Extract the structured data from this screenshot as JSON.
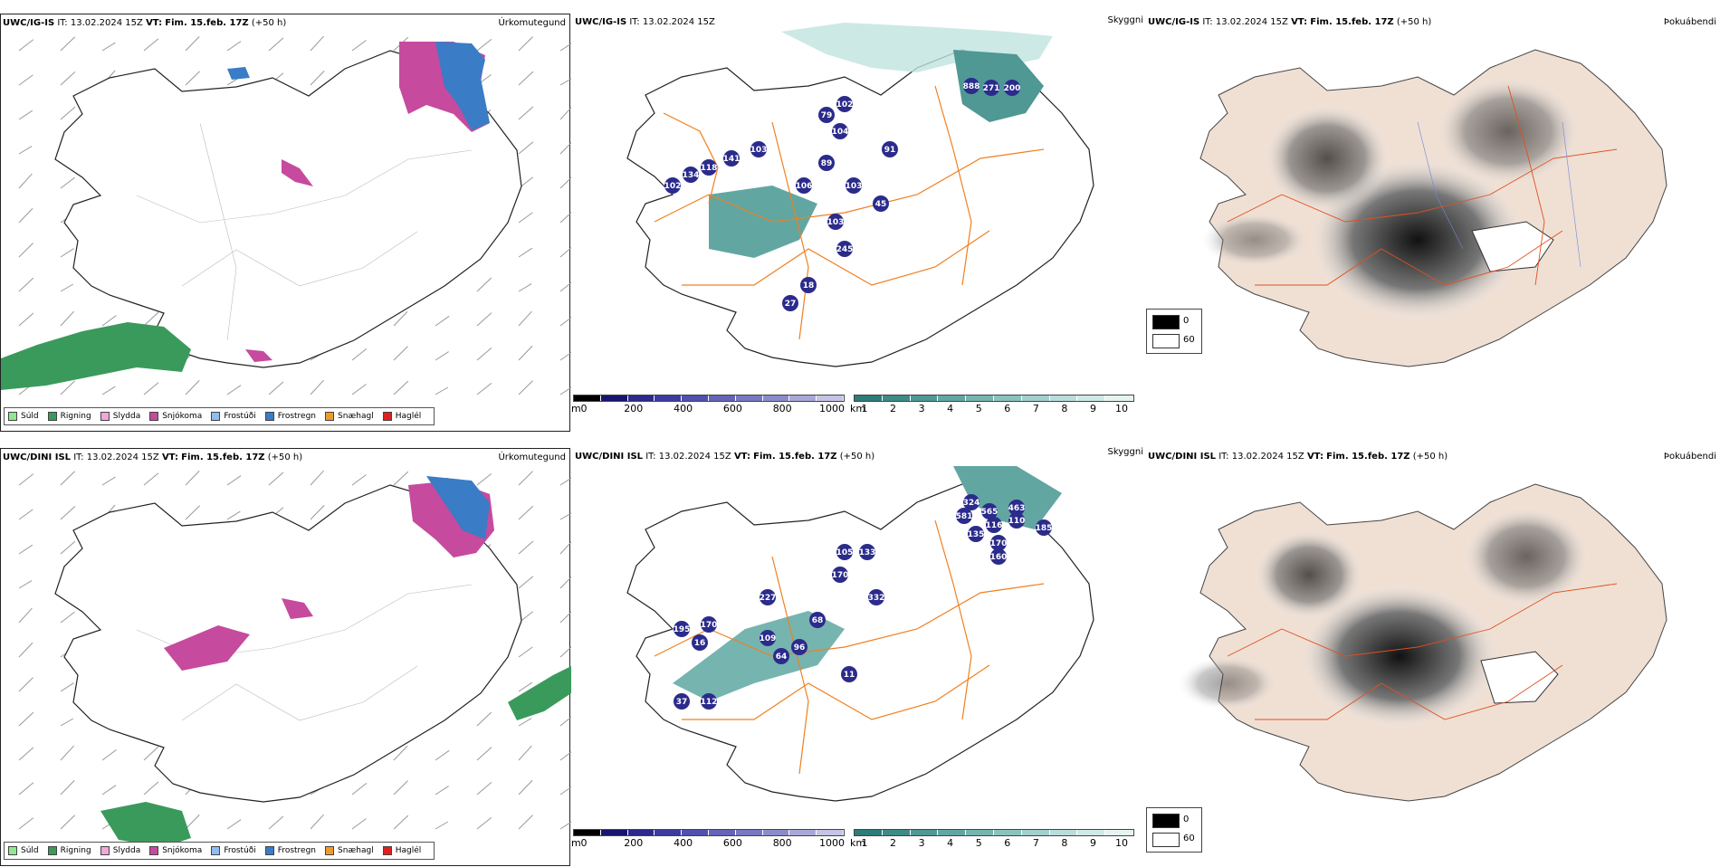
{
  "rows": [
    {
      "left": {
        "model": "UWC/IG-IS",
        "it_label": "IT:",
        "it_value": "13.02.2024 15Z",
        "vt_label": "VT:",
        "vt_value": "Fim. 15.feb. 17Z",
        "lead": "(+50 h)",
        "panel_name": "Úrkomutegund"
      },
      "middle": {
        "model": "UWC/IG-IS",
        "it_label": "IT:",
        "it_value": "13.02.2024 15Z",
        "panel_name": "Skyggni"
      },
      "right": {
        "model": "UWC/IG-IS",
        "it_label": "IT:",
        "it_value": "13.02.2024 15Z",
        "vt_label": "VT:",
        "vt_value": "Fim. 15.feb. 17Z",
        "lead": "(+50 h)",
        "panel_name": "Þokuábendi"
      }
    },
    {
      "left": {
        "model": "UWC/DINI ISL",
        "it_label": "IT:",
        "it_value": "13.02.2024 15Z",
        "vt_label": "VT:",
        "vt_value": "Fim. 15.feb. 17Z",
        "lead": "(+50 h)",
        "panel_name": "Úrkomutegund"
      },
      "middle": {
        "model": "UWC/DINI ISL",
        "it_label": "IT:",
        "it_value": "13.02.2024 15Z",
        "vt_label": "VT:",
        "vt_value": "Fim. 15.feb. 17Z",
        "lead": "(+50 h)",
        "panel_name": "Skyggni"
      },
      "right": {
        "model": "UWC/DINI ISL",
        "it_label": "IT:",
        "it_value": "13.02.2024 15Z",
        "vt_label": "VT:",
        "vt_value": "Fim. 15.feb. 17Z",
        "lead": "(+50 h)",
        "panel_name": "Þokuábendi"
      }
    }
  ],
  "precip_legend": [
    {
      "label": "Súld",
      "color": "#8fe88f"
    },
    {
      "label": "Rigning",
      "color": "#3a9a5c"
    },
    {
      "label": "Slydda",
      "color": "#f0a8d8"
    },
    {
      "label": "Snjókoma",
      "color": "#c64a9e"
    },
    {
      "label": "Frostúði",
      "color": "#8fbdf0"
    },
    {
      "label": "Frostregn",
      "color": "#3a7cc6"
    },
    {
      "label": "Snæhagl",
      "color": "#f09a2a"
    },
    {
      "label": "Haglél",
      "color": "#e02020"
    }
  ],
  "visibility_m": {
    "unit": "m",
    "ticks": [
      "0",
      "200",
      "400",
      "600",
      "800",
      "1000"
    ],
    "colors": [
      "#000000",
      "#16166e",
      "#2b2b8c",
      "#3c3ca0",
      "#5050ae",
      "#6464b8",
      "#7878c2",
      "#8c8ccc",
      "#a8a8d8",
      "#c4c4e6"
    ]
  },
  "visibility_km": {
    "unit": "km",
    "ticks": [
      "1",
      "2",
      "3",
      "4",
      "5",
      "6",
      "7",
      "8",
      "9",
      "10"
    ],
    "colors": [
      "#2e7b78",
      "#3d8a86",
      "#4f9894",
      "#62a6a2",
      "#76b4b0",
      "#8cc2be",
      "#a2d0cc",
      "#b8ddda",
      "#cee9e6",
      "#e4f4f2"
    ]
  },
  "fog_scale": {
    "low": "0",
    "high": "60"
  },
  "visibility_values": {
    "top": [
      "888",
      "271",
      "200",
      "102",
      "79",
      "104",
      "103",
      "141",
      "118",
      "134",
      "102",
      "91",
      "89",
      "106",
      "245",
      "103",
      "18",
      "27",
      "45",
      "103"
    ],
    "bottom": [
      "324",
      "581",
      "565",
      "463",
      "110",
      "116",
      "135",
      "170",
      "160",
      "185",
      "105",
      "133",
      "170",
      "227",
      "332",
      "68",
      "109",
      "96",
      "64",
      "11",
      "112",
      "37",
      "16",
      "195",
      "170"
    ]
  }
}
